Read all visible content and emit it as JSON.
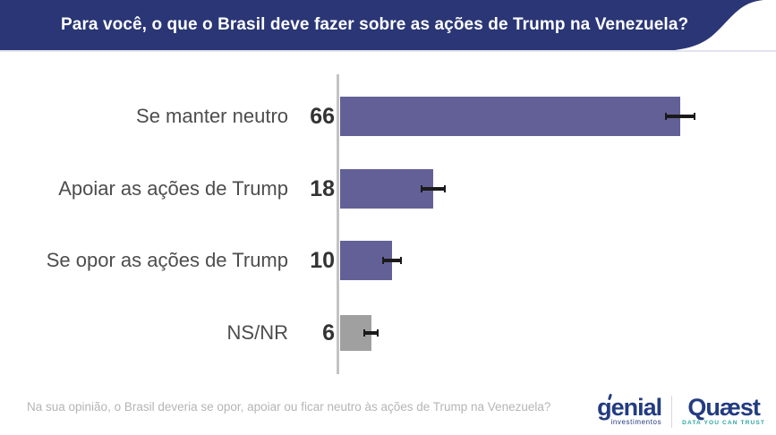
{
  "header": {
    "title": "Para você, o que o Brasil deve fazer sobre as ações de Trump na Venezuela?"
  },
  "chart_data": {
    "type": "bar",
    "orientation": "horizontal",
    "title": "Para você, o que o Brasil deve fazer sobre as ações de Trump na Venezuela?",
    "categories": [
      "Se manter neutro",
      "Apoiar as ações de Trump",
      "Se opor as ações de Trump",
      "NS/NR"
    ],
    "values": [
      66,
      18,
      10,
      6
    ],
    "error_margins": [
      3,
      2.4,
      1.9,
      1.5
    ],
    "bar_colors": [
      "#636098",
      "#636098",
      "#636098",
      "#a0a0a0"
    ],
    "value_labels": [
      "66",
      "18",
      "10",
      "6"
    ],
    "xlabel": "",
    "ylabel": "",
    "xlim": [
      0,
      85
    ],
    "grid": false,
    "legend": false
  },
  "footer": {
    "note": "Na sua opinião, o Brasil deveria se opor, apoiar ou ficar neutro às ações de Trump na Venezuela?"
  },
  "logos": {
    "genial": {
      "word": "genial",
      "subtitle": "investimentos",
      "color": "#233b80"
    },
    "quaest": {
      "word": "Quæst",
      "tagline": "DATA YOU CAN TRUST",
      "color": "#233b80",
      "tagline_color": "#2ea8a3"
    }
  },
  "colors": {
    "banner": "#2a3675",
    "bar": "#636098",
    "bar_nsnr": "#a0a0a0",
    "axis": "#c3c3c3",
    "category_label": "#4d4d4d",
    "value_label": "#333333",
    "footnote": "#b5b5b5",
    "whisker": "#1a1a1a"
  }
}
